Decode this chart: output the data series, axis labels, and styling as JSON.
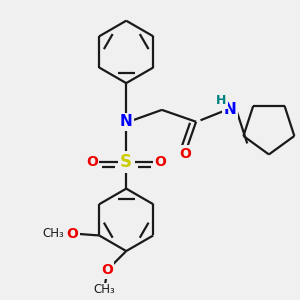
{
  "bg_color": "#f0f0f0",
  "bond_color": "#1a1a1a",
  "N_color": "#0000ff",
  "O_color": "#ee0000",
  "S_color": "#cccc00",
  "NH_color": "#008080",
  "H_color": "#008080",
  "line_width": 1.6,
  "figsize": [
    3.0,
    3.0
  ],
  "dpi": 100,
  "xlim": [
    0,
    10
  ],
  "ylim": [
    0,
    10
  ]
}
